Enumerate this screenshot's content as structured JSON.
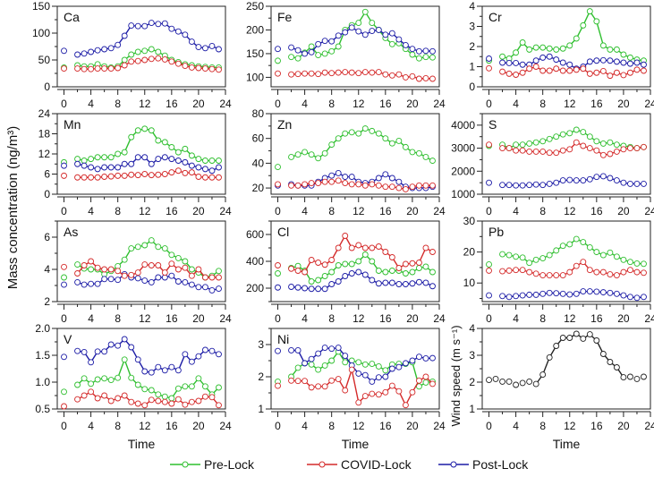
{
  "chart_data": {
    "type": "line",
    "ylabel": "Mass concentration (ng/m³)",
    "xlabel": "Time",
    "xlim": [
      0,
      24
    ],
    "xticks": [
      0,
      4,
      8,
      12,
      16,
      20,
      24
    ],
    "legend": {
      "placement": "bottom",
      "entries": [
        {
          "key": "pre",
          "name": "Pre-Lock",
          "color": "#2fbf2f"
        },
        {
          "key": "covid",
          "name": "COVID-Lock",
          "color": "#d42a2a"
        },
        {
          "key": "post",
          "name": "Post-Lock",
          "color": "#1c1ca6"
        }
      ]
    },
    "x": [
      0,
      2,
      3,
      4,
      5,
      6,
      7,
      8,
      9,
      10,
      11,
      12,
      13,
      14,
      15,
      16,
      17,
      18,
      19,
      20,
      21,
      22,
      23
    ],
    "panels": [
      {
        "label": "Ca",
        "ylim": [
          0,
          150
        ],
        "yticks": [
          0,
          50,
          100,
          150
        ],
        "series": {
          "pre": [
            36,
            40,
            38,
            38,
            42,
            38,
            36,
            38,
            50,
            60,
            65,
            67,
            70,
            65,
            58,
            50,
            46,
            42,
            40,
            38,
            37,
            36,
            36
          ],
          "covid": [
            34,
            34,
            33,
            33,
            34,
            34,
            34,
            35,
            40,
            47,
            48,
            50,
            52,
            53,
            51,
            47,
            43,
            39,
            36,
            35,
            34,
            33,
            32
          ],
          "post": [
            67,
            60,
            62,
            65,
            68,
            70,
            72,
            78,
            95,
            114,
            113,
            113,
            119,
            117,
            118,
            108,
            103,
            97,
            84,
            74,
            72,
            76,
            70
          ]
        }
      },
      {
        "label": "Fe",
        "ylim": [
          80,
          250
        ],
        "yticks": [
          100,
          150,
          200,
          250
        ],
        "series": {
          "pre": [
            135,
            143,
            140,
            152,
            165,
            147,
            150,
            155,
            165,
            200,
            210,
            215,
            238,
            215,
            200,
            183,
            170,
            172,
            160,
            148,
            140,
            143,
            142
          ],
          "covid": [
            108,
            106,
            107,
            108,
            108,
            107,
            110,
            109,
            110,
            111,
            110,
            109,
            111,
            110,
            111,
            106,
            104,
            106,
            100,
            102,
            97,
            98,
            97
          ],
          "post": [
            160,
            163,
            157,
            150,
            153,
            170,
            177,
            176,
            188,
            195,
            205,
            197,
            190,
            198,
            200,
            190,
            193,
            180,
            168,
            160,
            155,
            156,
            155
          ]
        }
      },
      {
        "label": "Cr",
        "ylim": [
          0,
          4
        ],
        "yticks": [
          0,
          1,
          2,
          3,
          4
        ],
        "series": {
          "pre": [
            1.3,
            1.5,
            1.4,
            1.7,
            2.2,
            1.85,
            1.95,
            1.95,
            1.9,
            1.85,
            1.9,
            2.05,
            2.4,
            3.05,
            3.75,
            3.25,
            2.05,
            1.85,
            1.85,
            1.6,
            1.45,
            1.35,
            1.3
          ],
          "covid": [
            0.92,
            0.75,
            0.65,
            0.6,
            0.7,
            0.9,
            1.0,
            0.8,
            0.8,
            0.9,
            0.8,
            0.8,
            0.85,
            0.9,
            0.65,
            0.7,
            0.78,
            0.55,
            0.7,
            0.58,
            0.7,
            0.85,
            0.8
          ],
          "post": [
            1.4,
            1.2,
            1.18,
            1.18,
            1.1,
            1.1,
            1.3,
            1.45,
            1.5,
            1.35,
            1.2,
            1.1,
            0.9,
            1.0,
            1.25,
            1.3,
            1.32,
            1.3,
            1.25,
            1.2,
            1.15,
            1.2,
            1.1
          ]
        }
      },
      {
        "label": "Mn",
        "ylim": [
          0,
          24
        ],
        "yticks": [
          0,
          6,
          12,
          18,
          24
        ],
        "series": {
          "pre": [
            9.5,
            10.5,
            10,
            10.5,
            11,
            11,
            11,
            12,
            12.5,
            17,
            19,
            19.5,
            19,
            16,
            15.5,
            14,
            12.5,
            13.5,
            11.5,
            10.5,
            10,
            10,
            10
          ],
          "covid": [
            5.5,
            5,
            5,
            5,
            5,
            5.2,
            5.3,
            5.5,
            5.5,
            5.8,
            5.7,
            6,
            5.7,
            5.8,
            6,
            6.5,
            7,
            6.3,
            6.5,
            5.2,
            5,
            5,
            5
          ],
          "post": [
            8.5,
            9,
            8.5,
            8,
            7.5,
            8,
            8,
            8,
            9,
            9,
            11,
            11,
            9,
            10.5,
            11,
            10.5,
            10,
            9.5,
            8.5,
            8,
            7.5,
            7,
            8
          ]
        }
      },
      {
        "label": "Zn",
        "ylim": [
          15,
          80
        ],
        "yticks": [
          20,
          40,
          60,
          80
        ],
        "series": {
          "pre": [
            37,
            45,
            47,
            49,
            47,
            44,
            48,
            55,
            60,
            64,
            65,
            64,
            68,
            66,
            64,
            60,
            56,
            58,
            53,
            49,
            48,
            45,
            42
          ],
          "covid": [
            23,
            22,
            22,
            23,
            24,
            24,
            25,
            25,
            26,
            24,
            23,
            23,
            22,
            23,
            22,
            21,
            21,
            20,
            19,
            21,
            22,
            22,
            22
          ],
          "post": [
            22,
            23,
            22,
            22,
            22,
            25,
            28,
            30,
            32,
            29,
            29,
            25,
            24,
            25,
            28,
            31,
            28,
            25,
            21,
            20,
            20,
            20,
            21
          ]
        }
      },
      {
        "label": "S",
        "ylim": [
          1000,
          4500
        ],
        "yticks": [
          1000,
          2000,
          3000,
          4000
        ],
        "series": {
          "pre": [
            3100,
            3150,
            3000,
            3150,
            3150,
            3200,
            3250,
            3300,
            3400,
            3500,
            3600,
            3650,
            3800,
            3700,
            3500,
            3300,
            3200,
            3250,
            3150,
            3100,
            3050,
            3000,
            3050
          ],
          "covid": [
            3150,
            3000,
            3000,
            2900,
            2900,
            2850,
            2850,
            2850,
            2800,
            2800,
            2900,
            2950,
            3250,
            3100,
            3000,
            2900,
            2700,
            2750,
            2850,
            2950,
            3000,
            3000,
            3050
          ],
          "post": [
            1500,
            1400,
            1400,
            1380,
            1380,
            1400,
            1420,
            1400,
            1450,
            1500,
            1600,
            1620,
            1600,
            1600,
            1650,
            1750,
            1780,
            1700,
            1600,
            1500,
            1450,
            1450,
            1450
          ]
        }
      },
      {
        "label": "As",
        "ylim": [
          2,
          7
        ],
        "yticks": [
          2,
          4,
          6
        ],
        "series": {
          "pre": [
            3.5,
            4.3,
            4.05,
            4.0,
            4.0,
            3.7,
            3.9,
            4.2,
            4.6,
            5.3,
            5.4,
            5.5,
            5.8,
            5.4,
            5.3,
            4.9,
            4.7,
            4.5,
            4.0,
            3.8,
            3.5,
            3.6,
            3.9
          ],
          "covid": [
            4.15,
            3.75,
            4.25,
            4.5,
            4.1,
            4.0,
            4.0,
            3.9,
            3.6,
            3.65,
            3.8,
            4.3,
            4.25,
            4.25,
            3.8,
            4.35,
            4.0,
            4.1,
            3.6,
            4.0,
            3.5,
            3.5,
            3.5
          ],
          "post": [
            3.05,
            3.2,
            3.05,
            3.1,
            3.1,
            3.4,
            3.4,
            3.35,
            3.7,
            3.5,
            3.45,
            3.3,
            3.2,
            3.5,
            3.5,
            3.6,
            3.25,
            3.2,
            3.05,
            2.9,
            2.9,
            2.7,
            2.8
          ]
        }
      },
      {
        "label": "Cl",
        "ylim": [
          100,
          700
        ],
        "yticks": [
          200,
          400,
          600
        ],
        "series": {
          "pre": [
            310,
            350,
            365,
            330,
            250,
            260,
            290,
            320,
            370,
            380,
            380,
            400,
            450,
            400,
            330,
            320,
            330,
            330,
            310,
            320,
            350,
            360,
            320
          ],
          "covid": [
            370,
            345,
            330,
            320,
            410,
            390,
            375,
            410,
            500,
            590,
            500,
            520,
            500,
            500,
            510,
            470,
            430,
            350,
            380,
            385,
            390,
            500,
            470
          ],
          "post": [
            205,
            210,
            205,
            200,
            195,
            195,
            195,
            230,
            250,
            290,
            310,
            320,
            300,
            260,
            235,
            240,
            240,
            230,
            230,
            235,
            245,
            240,
            215
          ]
        }
      },
      {
        "label": "Pb",
        "ylim": [
          4,
          30
        ],
        "yticks": [
          10,
          20,
          30
        ],
        "series": {
          "pre": [
            16,
            19.3,
            19,
            18.5,
            18.2,
            16.5,
            17.5,
            18,
            19,
            20.5,
            22,
            22.5,
            24.2,
            23.2,
            21.5,
            20,
            19,
            19.8,
            18.5,
            17.5,
            16.8,
            16.3,
            16.2
          ],
          "covid": [
            14,
            13.8,
            14,
            14.2,
            14.2,
            13.5,
            13,
            12.5,
            12.5,
            12.5,
            12.5,
            13.5,
            15.5,
            16.8,
            14.2,
            13.5,
            13.5,
            12.8,
            12.5,
            13.5,
            14.2,
            13.5,
            13.3
          ],
          "post": [
            6,
            5.8,
            5.5,
            5.8,
            6,
            6.2,
            6.2,
            6.5,
            6.8,
            6.7,
            6.5,
            6.3,
            6.5,
            7.3,
            7.3,
            7.2,
            7,
            6.8,
            6.5,
            6,
            5.5,
            5.2,
            5.5
          ]
        }
      },
      {
        "label": "V",
        "ylim": [
          0.5,
          2.0
        ],
        "yticks": [
          0.5,
          1.0,
          1.5,
          2.0
        ],
        "series": {
          "pre": [
            0.82,
            0.95,
            1.07,
            0.97,
            1.05,
            1.07,
            1.04,
            1.08,
            1.42,
            1.08,
            0.95,
            0.87,
            0.85,
            0.77,
            0.73,
            0.7,
            0.88,
            0.92,
            0.92,
            1.07,
            0.92,
            0.77,
            0.9
          ],
          "covid": [
            0.55,
            0.68,
            0.75,
            0.82,
            0.7,
            0.75,
            0.65,
            0.7,
            0.75,
            0.63,
            0.6,
            0.57,
            0.67,
            0.65,
            0.63,
            0.6,
            0.68,
            0.58,
            0.63,
            0.65,
            0.73,
            0.72,
            0.57
          ],
          "post": [
            1.47,
            1.58,
            1.56,
            1.37,
            1.57,
            1.57,
            1.7,
            1.68,
            1.8,
            1.65,
            1.42,
            1.2,
            1.18,
            1.28,
            1.22,
            1.28,
            1.22,
            1.52,
            1.38,
            1.48,
            1.6,
            1.58,
            1.52
          ]
        }
      },
      {
        "label": "Ni",
        "ylim": [
          1,
          3.5
        ],
        "yticks": [
          1,
          2,
          3
        ],
        "series": {
          "pre": [
            1.85,
            2.0,
            2.28,
            2.42,
            2.38,
            2.22,
            2.35,
            2.5,
            2.78,
            2.45,
            2.5,
            2.45,
            2.38,
            2.4,
            2.32,
            2.2,
            2.38,
            2.4,
            2.4,
            2.45,
            1.7,
            1.82,
            1.85
          ],
          "covid": [
            1.72,
            1.88,
            1.87,
            1.87,
            1.67,
            1.7,
            1.7,
            1.88,
            1.93,
            1.58,
            2.22,
            1.2,
            1.4,
            1.47,
            1.45,
            1.52,
            1.72,
            1.55,
            1.12,
            1.52,
            1.88,
            2.0,
            1.78
          ],
          "post": [
            2.8,
            2.82,
            2.82,
            2.42,
            2.55,
            2.72,
            2.9,
            2.87,
            2.9,
            2.65,
            2.35,
            2.1,
            2.05,
            1.85,
            1.98,
            2.0,
            2.25,
            2.3,
            2.42,
            2.5,
            2.62,
            2.57,
            2.58
          ]
        }
      }
    ],
    "wind": {
      "ylabel": "Wind speed (m s⁻¹)",
      "ylim": [
        1,
        4
      ],
      "yticks": [
        1,
        2,
        3,
        4
      ],
      "color": "#222222",
      "x": [
        0,
        1,
        2,
        3,
        4,
        5,
        6,
        7,
        8,
        9,
        10,
        11,
        12,
        13,
        14,
        15,
        16,
        17,
        18,
        19,
        20,
        21,
        22,
        23
      ],
      "values": [
        2.08,
        2.12,
        2.02,
        2.02,
        1.9,
        1.97,
        2.02,
        1.93,
        2.28,
        2.92,
        3.35,
        3.65,
        3.65,
        3.8,
        3.62,
        3.78,
        3.55,
        3.05,
        2.75,
        2.55,
        2.18,
        2.2,
        2.12,
        2.2
      ]
    }
  }
}
